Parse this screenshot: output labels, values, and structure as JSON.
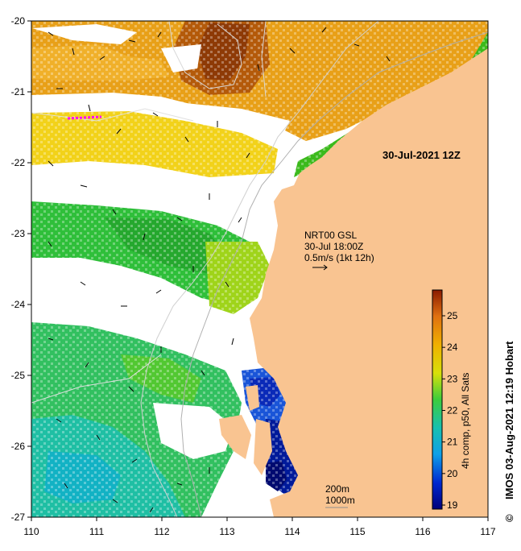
{
  "map": {
    "date_label": "30-Jul-2021 12Z",
    "current_info": [
      "NRT00 GSL",
      "30-Jul 18:00Z",
      "0.5m/s (1kt 12h)"
    ],
    "depth_legend": [
      "200m",
      "1000m"
    ],
    "colorbar_label": "4h comp, p50, All Sats",
    "credit": "IMOS 03-Aug-2021 12:19 Hobart",
    "copyright_symbol": "©",
    "x_ticks": [
      "110",
      "111",
      "112",
      "113",
      "114",
      "115",
      "116",
      "117"
    ],
    "y_ticks": [
      "-20",
      "-21",
      "-22",
      "-23",
      "-24",
      "-25",
      "-26",
      "-27"
    ],
    "colorbar_ticks": [
      "19",
      "20",
      "21",
      "22",
      "23",
      "24",
      "25"
    ],
    "land_color": "#f9c491",
    "cloud_color": "#ffffff"
  }
}
